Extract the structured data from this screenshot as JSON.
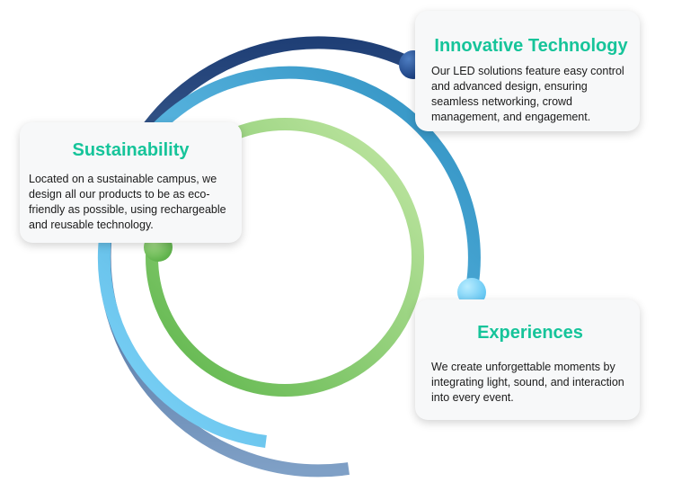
{
  "colors": {
    "title": "#16c49a",
    "outer_ring_start": "#1f3f76",
    "outer_ring_end": "#7fa0c6",
    "middle_ring_start": "#2e8fc0",
    "middle_ring_end": "#7fd6fb",
    "inner_ring_start": "#5cb54a",
    "inner_ring_end": "#c4e8a6"
  },
  "cards": {
    "innovative": {
      "title": "Innovative Technology",
      "text": "Our LED solutions feature easy control and advanced design, ensuring seamless networking, crowd management, and engagement."
    },
    "sustainability": {
      "title": "Sustainability",
      "text": "Located on a sustainable campus, we design all our products to be as eco-friendly as possible, using rechargeable and reusable technology."
    },
    "experiences": {
      "title": "Experiences",
      "text": "We create unforgettable moments by integrating light, sound, and interaction into every event."
    }
  }
}
